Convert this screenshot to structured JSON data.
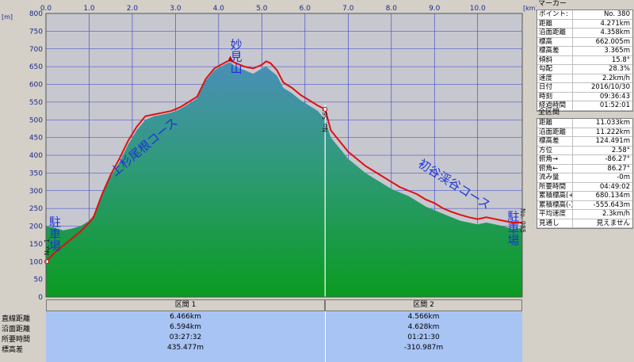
{
  "chart_data": {
    "type": "area",
    "x_unit": "[km]",
    "y_unit": "[m]",
    "x_ticks": [
      "0.0",
      "1.0",
      "2.0",
      "3.0",
      "4.0",
      "5.0",
      "6.0",
      "7.0",
      "8.0",
      "9.0",
      "10.0"
    ],
    "y_ticks": [
      "0",
      "50",
      "100",
      "150",
      "200",
      "250",
      "300",
      "350",
      "400",
      "450",
      "500",
      "550",
      "600",
      "650",
      "700",
      "750",
      "800"
    ],
    "xlim": [
      0,
      11.033
    ],
    "ylim": [
      0,
      800
    ],
    "grid": true,
    "elevation_profile": {
      "x": [
        0,
        0.2,
        0.4,
        0.6,
        0.8,
        1.0,
        1.1,
        1.3,
        1.5,
        1.7,
        1.9,
        2.1,
        2.3,
        2.5,
        2.7,
        2.9,
        3.1,
        3.3,
        3.5,
        3.7,
        3.9,
        4.05,
        4.2,
        4.27,
        4.4,
        4.6,
        4.8,
        5.0,
        5.1,
        5.2,
        5.35,
        5.5,
        5.7,
        5.9,
        6.1,
        6.3,
        6.466,
        6.6,
        6.8,
        7.0,
        7.2,
        7.4,
        7.6,
        7.8,
        8.0,
        8.2,
        8.4,
        8.6,
        8.8,
        9.0,
        9.2,
        9.4,
        9.6,
        9.8,
        10.0,
        10.2,
        10.4,
        10.6,
        10.8,
        11.033
      ],
      "y": [
        200,
        195,
        188,
        193,
        200,
        215,
        230,
        290,
        340,
        380,
        430,
        470,
        500,
        510,
        515,
        520,
        530,
        545,
        560,
        610,
        640,
        650,
        660,
        662,
        650,
        640,
        630,
        645,
        650,
        640,
        625,
        590,
        575,
        555,
        540,
        525,
        500,
        450,
        420,
        390,
        370,
        350,
        335,
        320,
        305,
        295,
        285,
        270,
        255,
        245,
        235,
        225,
        215,
        210,
        205,
        210,
        205,
        200,
        192,
        195
      ]
    },
    "route": {
      "x": [
        0,
        0.2,
        0.4,
        0.6,
        0.8,
        1.0,
        1.1,
        1.3,
        1.5,
        1.7,
        1.9,
        2.1,
        2.3,
        2.5,
        2.7,
        2.9,
        3.1,
        3.3,
        3.5,
        3.7,
        3.9,
        4.05,
        4.2,
        4.27,
        4.4,
        4.6,
        4.8,
        5.0,
        5.1,
        5.2,
        5.35,
        5.5,
        5.7,
        5.9,
        6.1,
        6.3,
        6.466,
        6.6,
        6.8,
        7.0,
        7.2,
        7.4,
        7.6,
        7.8,
        8.0,
        8.2,
        8.4,
        8.6,
        8.8,
        9.0,
        9.2,
        9.4,
        9.6,
        9.8,
        10.0,
        10.2,
        10.4,
        10.6,
        10.8,
        11.033
      ],
      "y": [
        100,
        125,
        145,
        165,
        185,
        210,
        225,
        290,
        345,
        390,
        440,
        480,
        510,
        515,
        520,
        525,
        535,
        550,
        565,
        615,
        645,
        655,
        665,
        667,
        660,
        650,
        645,
        655,
        665,
        660,
        640,
        605,
        590,
        570,
        555,
        540,
        530,
        470,
        440,
        410,
        390,
        370,
        355,
        340,
        325,
        310,
        300,
        290,
        275,
        265,
        250,
        240,
        232,
        225,
        220,
        225,
        220,
        215,
        210,
        210
      ]
    },
    "markers": [
      {
        "label": "No. 567",
        "x": 6.466
      },
      {
        "label": "No. 380",
        "x": 4.271
      },
      {
        "label": "No. 1",
        "x": 0.0
      },
      {
        "label": "No. 985",
        "x": 11.033
      }
    ],
    "annotations": [
      {
        "text": "駐車場",
        "x": 0.2,
        "y": 230,
        "orient": "vertical"
      },
      {
        "text": "上杉尾根コース",
        "x": 1.6,
        "y": 340,
        "orient": "diagonal"
      },
      {
        "text": "妙見山",
        "x": 4.4,
        "y": 730,
        "orient": "vertical"
      },
      {
        "text": "初谷渓谷コース",
        "x": 8.6,
        "y": 370,
        "orient": "diagonal"
      },
      {
        "text": "駐車場",
        "x": 10.82,
        "y": 245,
        "orient": "vertical"
      }
    ],
    "colors": {
      "plot_bg": "#c7c7cf",
      "terrain_top": "#4a8fb8",
      "terrain_bottom": "#0a9b20",
      "route": "#e01010",
      "grid": "#3240c8",
      "marker_line": "#ffffff"
    }
  },
  "sections": {
    "headers": [
      "区間 1",
      "区間 2"
    ],
    "rows": [
      {
        "label": "直線距離",
        "values": [
          "6.466km",
          "4.566km"
        ]
      },
      {
        "label": "沿面距離",
        "values": [
          "6.594km",
          "4.628km"
        ]
      },
      {
        "label": "所要時間",
        "values": [
          "03:27:32",
          "01:21:30"
        ]
      },
      {
        "label": "標高差",
        "values": [
          "435.477m",
          "-310.987m"
        ]
      }
    ]
  },
  "marker_panel": {
    "title": "マーカー",
    "rows": [
      {
        "k": "ポイント:",
        "v": "No. 380"
      },
      {
        "k": "距離",
        "v": "4.271km"
      },
      {
        "k": "沿面距離",
        "v": "4.358km"
      },
      {
        "k": "標高",
        "v": "662.005m"
      },
      {
        "k": "標高差",
        "v": "3.365m"
      },
      {
        "k": "傾斜",
        "v": "15.8°"
      },
      {
        "k": "勾配",
        "v": "28.3%"
      },
      {
        "k": "速度",
        "v": "2.2km/h"
      },
      {
        "k": "日付",
        "v": "2016/10/30"
      },
      {
        "k": "時刻",
        "v": "09:36:43"
      },
      {
        "k": "経過時間",
        "v": "01:52:01"
      }
    ]
  },
  "total_panel": {
    "title": "全区間",
    "rows": [
      {
        "k": "距離",
        "v": "11.033km"
      },
      {
        "k": "沿面距離",
        "v": "11.222km"
      },
      {
        "k": "標高差",
        "v": "124.491m"
      },
      {
        "k": "方位",
        "v": "2.58°"
      },
      {
        "k": "俯角→",
        "v": "-86.27°"
      },
      {
        "k": "俯角←",
        "v": "86.27°"
      },
      {
        "k": "流み量",
        "v": "-0m"
      },
      {
        "k": "所要時間",
        "v": "04:49:02"
      },
      {
        "k": "累積標高(+)",
        "v": "680.134m"
      },
      {
        "k": "累積標高(-)",
        "v": "-555.643m"
      },
      {
        "k": "平均速度",
        "v": "2.3km/h"
      },
      {
        "k": "見通し",
        "v": "見えません"
      }
    ]
  }
}
